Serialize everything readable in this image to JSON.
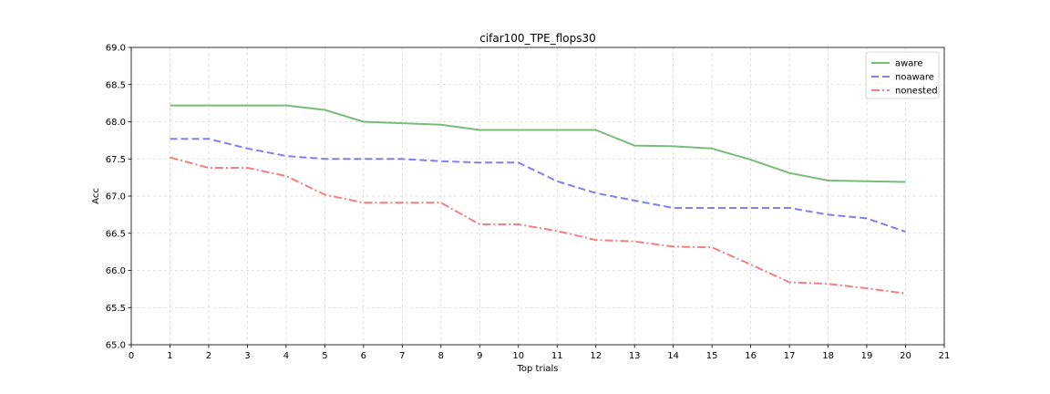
{
  "chart_data": {
    "type": "line",
    "title": "cifar100_TPE_flops30",
    "xlabel": "Top trials",
    "ylabel": "Acc",
    "xlim": [
      0,
      21
    ],
    "ylim": [
      65.0,
      69.0
    ],
    "x_ticks": [
      0,
      1,
      2,
      3,
      4,
      5,
      6,
      7,
      8,
      9,
      10,
      11,
      12,
      13,
      14,
      15,
      16,
      17,
      18,
      19,
      20,
      21
    ],
    "y_ticks": [
      "65.0",
      "65.5",
      "66.0",
      "66.5",
      "67.0",
      "67.5",
      "68.0",
      "68.5",
      "69.0"
    ],
    "grid": true,
    "legend_position": "top-right",
    "x": [
      1,
      2,
      3,
      4,
      5,
      6,
      7,
      8,
      9,
      10,
      11,
      12,
      13,
      14,
      15,
      16,
      17,
      18,
      19,
      20
    ],
    "series": [
      {
        "name": "aware",
        "color": "#4ca64c",
        "style": "solid",
        "values": [
          68.22,
          68.22,
          68.22,
          68.22,
          68.16,
          68.0,
          67.98,
          67.96,
          67.89,
          67.89,
          67.89,
          67.89,
          67.68,
          67.67,
          67.64,
          67.49,
          67.31,
          67.21,
          67.2,
          67.19
        ]
      },
      {
        "name": "noaware",
        "color": "#5555ee",
        "style": "dashed",
        "values": [
          67.77,
          67.77,
          67.64,
          67.54,
          67.5,
          67.5,
          67.5,
          67.47,
          67.45,
          67.45,
          67.2,
          67.04,
          66.94,
          66.84,
          66.84,
          66.84,
          66.84,
          66.75,
          66.7,
          66.52
        ]
      },
      {
        "name": "nonested",
        "color": "#ee5555",
        "style": "dashdot",
        "values": [
          67.52,
          67.38,
          67.38,
          67.27,
          67.02,
          66.91,
          66.91,
          66.91,
          66.62,
          66.62,
          66.53,
          66.41,
          66.39,
          66.32,
          66.31,
          66.08,
          65.84,
          65.82,
          65.76,
          65.69
        ]
      }
    ]
  }
}
